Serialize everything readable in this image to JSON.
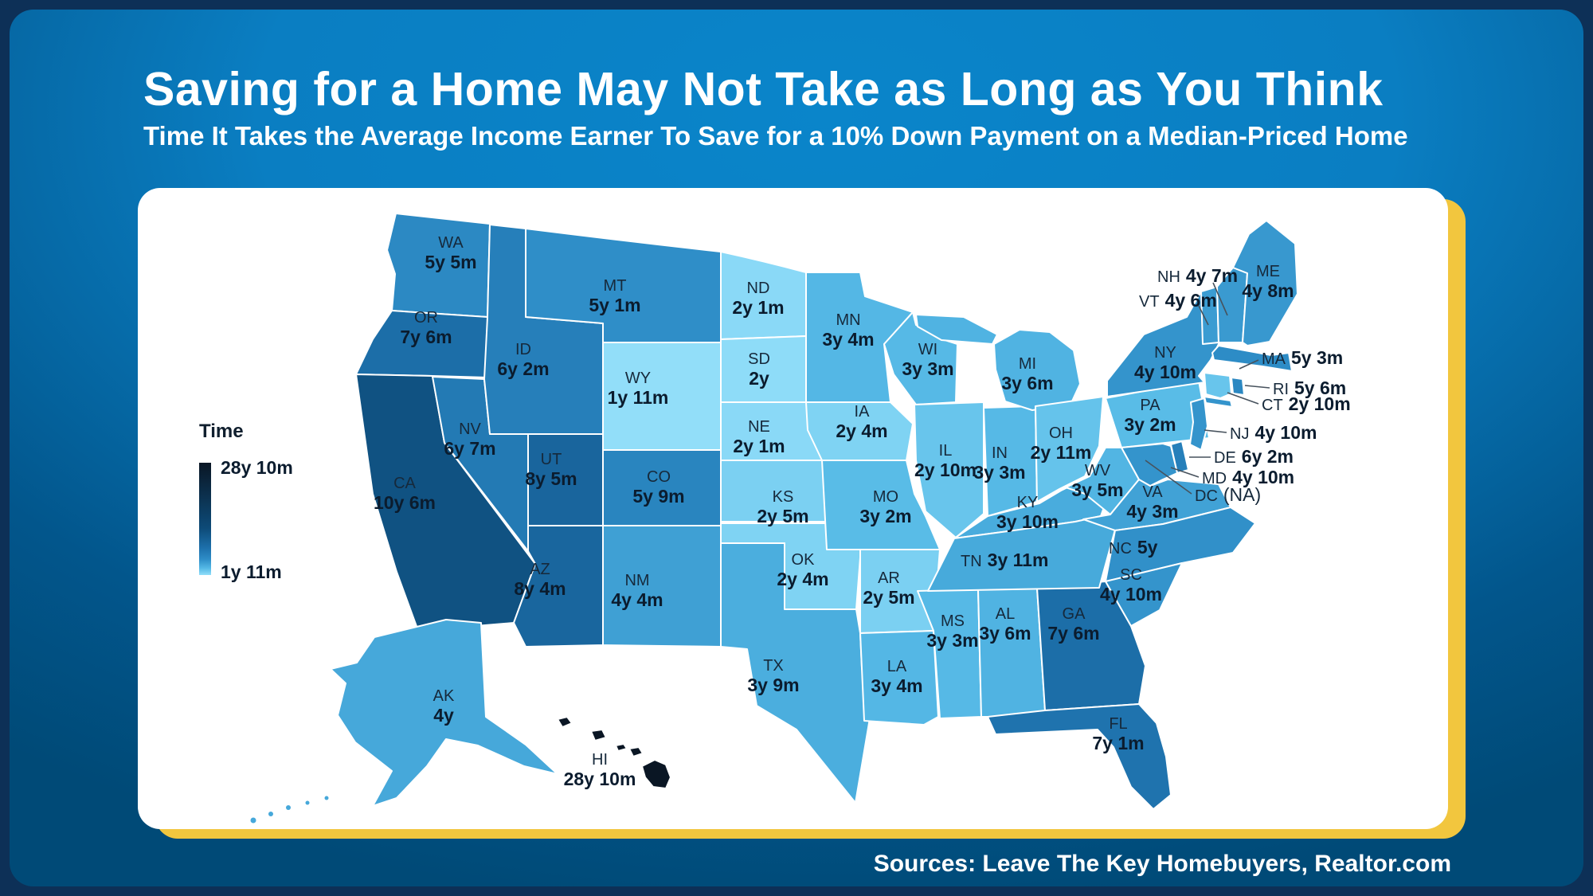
{
  "header": {
    "title": "Saving for a Home May Not Take as Long as You Think",
    "subtitle": "Time It Takes the Average Income Earner To Save for a 10% Down Payment on a Median-Priced Home"
  },
  "legend": {
    "title": "Time",
    "max_label": "28y 10m",
    "min_label": "1y 11m"
  },
  "footer": {
    "sources": "Sources: Leave The Key Homebuyers, Realtor.com"
  },
  "colors": {
    "background_outer": "#0d3057",
    "background_top": "#0a85ca",
    "background_bottom": "#004a77",
    "card": "#ffffff",
    "accent_yellow": "#f2c63e",
    "map_lightest": "#92def9",
    "map_darkest": "#0a1624",
    "label_text": "#0b1c2e",
    "title_text": "#ffffff"
  },
  "chart_data": {
    "type": "choropleth-map",
    "region": "United States (50 states + DC)",
    "title": "Saving for a Home May Not Take as Long as You Think",
    "subtitle": "Time It Takes the Average Income Earner To Save for a 10% Down Payment on a Median-Priced Home",
    "unit": "years (y) and months (m) to save",
    "scale": {
      "legend_label": "Time",
      "min": "1y 11m",
      "max": "28y 10m"
    },
    "states": [
      {
        "abbr": "WA",
        "value": "5y 5m"
      },
      {
        "abbr": "OR",
        "value": "7y 6m"
      },
      {
        "abbr": "CA",
        "value": "10y 6m"
      },
      {
        "abbr": "NV",
        "value": "6y 7m"
      },
      {
        "abbr": "ID",
        "value": "6y 2m"
      },
      {
        "abbr": "UT",
        "value": "8y 5m"
      },
      {
        "abbr": "AZ",
        "value": "8y 4m"
      },
      {
        "abbr": "MT",
        "value": "5y 1m"
      },
      {
        "abbr": "WY",
        "value": "1y 11m"
      },
      {
        "abbr": "CO",
        "value": "5y 9m"
      },
      {
        "abbr": "NM",
        "value": "4y 4m"
      },
      {
        "abbr": "ND",
        "value": "2y 1m"
      },
      {
        "abbr": "SD",
        "value": "2y"
      },
      {
        "abbr": "NE",
        "value": "2y 1m"
      },
      {
        "abbr": "KS",
        "value": "2y 5m"
      },
      {
        "abbr": "OK",
        "value": "2y 4m"
      },
      {
        "abbr": "TX",
        "value": "3y 9m"
      },
      {
        "abbr": "MN",
        "value": "3y 4m"
      },
      {
        "abbr": "IA",
        "value": "2y 4m"
      },
      {
        "abbr": "MO",
        "value": "3y 2m"
      },
      {
        "abbr": "AR",
        "value": "2y 5m"
      },
      {
        "abbr": "LA",
        "value": "3y 4m"
      },
      {
        "abbr": "WI",
        "value": "3y 3m"
      },
      {
        "abbr": "IL",
        "value": "2y 10m"
      },
      {
        "abbr": "MS",
        "value": "3y 3m"
      },
      {
        "abbr": "IN",
        "value": "3y 3m"
      },
      {
        "abbr": "MI",
        "value": "3y 6m"
      },
      {
        "abbr": "AL",
        "value": "3y 6m"
      },
      {
        "abbr": "GA",
        "value": "7y 6m"
      },
      {
        "abbr": "OH",
        "value": "2y 11m"
      },
      {
        "abbr": "KY",
        "value": "3y 10m"
      },
      {
        "abbr": "TN",
        "value": "3y 11m"
      },
      {
        "abbr": "WV",
        "value": "3y 5m"
      },
      {
        "abbr": "VA",
        "value": "4y 3m"
      },
      {
        "abbr": "NC",
        "value": "5y"
      },
      {
        "abbr": "SC",
        "value": "4y 10m"
      },
      {
        "abbr": "FL",
        "value": "7y 1m"
      },
      {
        "abbr": "PA",
        "value": "3y 2m"
      },
      {
        "abbr": "NY",
        "value": "4y 10m"
      },
      {
        "abbr": "NJ",
        "value": "4y 10m"
      },
      {
        "abbr": "DE",
        "value": "6y 2m"
      },
      {
        "abbr": "MD",
        "value": "4y 10m"
      },
      {
        "abbr": "DC",
        "value": "(NA)"
      },
      {
        "abbr": "CT",
        "value": "2y 10m"
      },
      {
        "abbr": "RI",
        "value": "5y 6m"
      },
      {
        "abbr": "MA",
        "value": "5y 3m"
      },
      {
        "abbr": "VT",
        "value": "4y 6m"
      },
      {
        "abbr": "NH",
        "value": "4y 7m"
      },
      {
        "abbr": "ME",
        "value": "4y 8m"
      },
      {
        "abbr": "AK",
        "value": "4y"
      },
      {
        "abbr": "HI",
        "value": "28y 10m"
      }
    ]
  }
}
